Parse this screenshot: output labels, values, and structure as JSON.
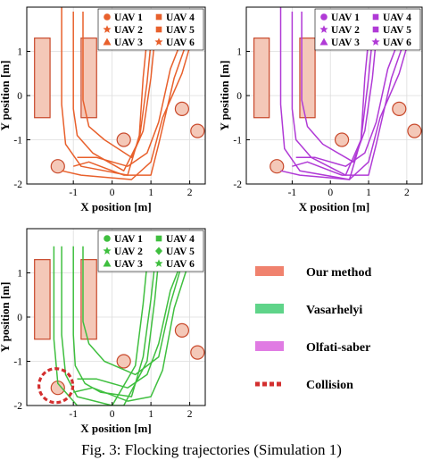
{
  "caption": "Fig. 3: Flocking trajectories (Simulation 1)",
  "chart_data": [
    {
      "type": "line",
      "method": "Our method",
      "xlabel": "X position [m]",
      "ylabel": "Y position [m]",
      "xlim": [
        -2.2,
        2.4
      ],
      "ylim": [
        -2.0,
        2.0
      ],
      "xticks": [
        -1,
        0,
        1,
        2
      ],
      "yticks": [
        -2,
        -1,
        0,
        1
      ],
      "legend": "top-right",
      "color": "#e8602c",
      "series": [
        {
          "name": "UAV 1",
          "marker": "circle",
          "x": [
            -1.0,
            -1.0,
            -1.0,
            -0.9,
            -0.5,
            0.3,
            0.7,
            0.9,
            1.0
          ],
          "y": [
            1.9,
            1.6,
            -0.3,
            -0.9,
            -1.3,
            -1.7,
            -1.0,
            0.3,
            1.2
          ]
        },
        {
          "name": "UAV 2",
          "marker": "star",
          "x": [
            -1.3,
            -1.3,
            -1.3,
            -1.2,
            -0.8,
            0.4,
            0.7,
            0.8,
            0.9
          ],
          "y": [
            2.0,
            1.6,
            -0.2,
            -1.1,
            -1.6,
            -1.8,
            -0.9,
            0.4,
            1.3
          ]
        },
        {
          "name": "UAV 3",
          "marker": "triangle",
          "x": [
            -0.75,
            -0.75,
            -0.75,
            -0.6,
            -0.2,
            0.5,
            0.8,
            1.0,
            1.1
          ],
          "y": [
            1.9,
            1.6,
            -0.1,
            -0.7,
            -1.0,
            -1.4,
            -0.8,
            0.4,
            1.3
          ]
        },
        {
          "name": "UAV 4",
          "marker": "square",
          "x": [
            -1.0,
            -0.6,
            0.3,
            1.0,
            1.2,
            1.6,
            2.0
          ],
          "y": [
            -1.6,
            -1.5,
            -1.8,
            -1.8,
            -1.1,
            0.4,
            1.4
          ]
        },
        {
          "name": "UAV 5",
          "marker": "square",
          "x": [
            -1.3,
            -0.8,
            0.5,
            1.0,
            1.3,
            1.8,
            2.1
          ],
          "y": [
            -1.7,
            -1.8,
            -1.9,
            -1.5,
            -0.5,
            0.5,
            1.4
          ]
        },
        {
          "name": "UAV 6",
          "marker": "star",
          "x": [
            -0.9,
            -0.4,
            0.4,
            0.9,
            1.2,
            1.5,
            1.9
          ],
          "y": [
            -1.4,
            -1.4,
            -1.6,
            -1.3,
            -0.6,
            0.6,
            1.5
          ]
        }
      ]
    },
    {
      "type": "line",
      "method": "Olfati-saber",
      "xlabel": "X position [m]",
      "ylabel": "Y position [m]",
      "xlim": [
        -2.2,
        2.4
      ],
      "ylim": [
        -2.0,
        2.0
      ],
      "xticks": [
        -1,
        0,
        1,
        2
      ],
      "yticks": [
        -2,
        -1,
        0,
        1
      ],
      "legend": "top-right",
      "color": "#b03ad6",
      "series": [
        {
          "name": "UAV 1",
          "marker": "circle",
          "x": [
            -1.0,
            -1.0,
            -1.0,
            -0.9,
            -0.5,
            0.4,
            0.8,
            1.0,
            1.1
          ],
          "y": [
            1.9,
            1.6,
            -0.3,
            -1.0,
            -1.4,
            -1.8,
            -1.0,
            0.4,
            1.3
          ]
        },
        {
          "name": "UAV 2",
          "marker": "star",
          "x": [
            -1.3,
            -1.3,
            -1.3,
            -1.2,
            -0.8,
            0.5,
            0.8,
            0.9,
            1.0
          ],
          "y": [
            2.0,
            1.6,
            -0.2,
            -1.2,
            -1.7,
            -1.9,
            -1.0,
            0.4,
            1.3
          ]
        },
        {
          "name": "UAV 3",
          "marker": "triangle",
          "x": [
            -0.75,
            -0.75,
            -0.75,
            -0.6,
            -0.2,
            0.6,
            0.9,
            1.1,
            1.2
          ],
          "y": [
            1.9,
            1.6,
            -0.1,
            -0.7,
            -1.1,
            -1.5,
            -0.8,
            0.4,
            1.3
          ]
        },
        {
          "name": "UAV 4",
          "marker": "square",
          "x": [
            -1.0,
            -0.6,
            0.3,
            1.0,
            1.2,
            1.6,
            2.0
          ],
          "y": [
            -1.6,
            -1.5,
            -1.8,
            -1.8,
            -1.1,
            0.4,
            1.4
          ]
        },
        {
          "name": "UAV 5",
          "marker": "square",
          "x": [
            -1.3,
            -0.8,
            0.5,
            1.0,
            1.3,
            1.8,
            2.1
          ],
          "y": [
            -1.7,
            -1.8,
            -1.9,
            -1.5,
            -0.5,
            0.5,
            1.4
          ]
        },
        {
          "name": "UAV 6",
          "marker": "star",
          "x": [
            -0.9,
            -0.4,
            0.4,
            0.9,
            1.2,
            1.5,
            1.9
          ],
          "y": [
            -1.4,
            -1.4,
            -1.6,
            -1.3,
            -0.6,
            0.6,
            1.5
          ]
        }
      ]
    },
    {
      "type": "line",
      "method": "Vasarhelyi",
      "xlabel": "X position [m]",
      "ylabel": "Y position [m]",
      "xlim": [
        -2.2,
        2.4
      ],
      "ylim": [
        -2.0,
        2.0
      ],
      "xticks": [
        -1,
        0,
        1,
        2
      ],
      "yticks": [
        -2,
        -1,
        0,
        1
      ],
      "legend": "top-right",
      "color": "#3fbf3f",
      "series": [
        {
          "name": "UAV 1",
          "marker": "circle",
          "x": [
            -1.0,
            -1.0,
            -1.0,
            -0.95,
            -0.7,
            -0.3,
            0.5,
            0.8,
            1.0,
            1.1
          ],
          "y": [
            1.6,
            1.4,
            -0.4,
            -1.1,
            -1.5,
            -1.7,
            -1.8,
            -0.9,
            0.4,
            1.2
          ]
        },
        {
          "name": "UAV 2",
          "marker": "star",
          "x": [
            -1.3,
            -1.3,
            -1.3,
            -1.2,
            -0.9,
            0.0,
            0.6,
            0.8,
            0.9
          ],
          "y": [
            1.6,
            1.4,
            -0.4,
            -1.3,
            -1.8,
            -2.0,
            -1.1,
            0.3,
            1.2
          ]
        },
        {
          "name": "UAV 3",
          "marker": "triangle",
          "x": [
            -1.5,
            -1.5,
            -1.5,
            -1.4,
            -0.9,
            0.3,
            0.9,
            1.1,
            1.2
          ],
          "y": [
            1.6,
            1.4,
            -0.5,
            -1.5,
            -2.0,
            -2.0,
            -1.0,
            0.4,
            1.3
          ]
        },
        {
          "name": "UAV 4",
          "marker": "square",
          "x": [
            -0.75,
            -0.75,
            -0.75,
            -0.6,
            -0.2,
            0.6,
            1.2,
            1.5,
            1.8
          ],
          "y": [
            1.6,
            1.4,
            -0.1,
            -0.6,
            -1.0,
            -1.3,
            -0.9,
            0.3,
            1.2
          ]
        },
        {
          "name": "UAV 5",
          "marker": "diamond",
          "x": [
            -1.0,
            -0.5,
            0.4,
            1.0,
            1.3,
            1.6,
            2.0
          ],
          "y": [
            -1.7,
            -1.6,
            -1.9,
            -1.8,
            -1.2,
            0.2,
            1.3
          ]
        },
        {
          "name": "UAV 6",
          "marker": "star",
          "x": [
            -0.9,
            -0.4,
            0.4,
            0.9,
            1.2,
            1.5,
            1.9
          ],
          "y": [
            -1.4,
            -1.4,
            -1.6,
            -1.3,
            -0.6,
            0.6,
            1.5
          ]
        }
      ],
      "annotations": [
        {
          "type": "collision-circle",
          "x": -1.45,
          "y": -1.55
        }
      ]
    }
  ],
  "obstacles": {
    "rects": [
      [
        -2.0,
        -0.5,
        0.4,
        1.8
      ],
      [
        -0.8,
        -0.5,
        0.4,
        1.8
      ]
    ],
    "circles": [
      [
        -1.4,
        -1.6
      ],
      [
        0.3,
        -1.0
      ],
      [
        1.8,
        -0.3
      ],
      [
        2.2,
        -0.8
      ]
    ],
    "fill": "#f4c8b8",
    "stroke": "#c8482a"
  },
  "method_legend": [
    {
      "label": "Our method",
      "color": "#f0826e",
      "style": "solid"
    },
    {
      "label": "Vasarhelyi",
      "color": "#5fd489",
      "style": "solid"
    },
    {
      "label": "Olfati-saber",
      "color": "#e07be3",
      "style": "solid"
    },
    {
      "label": "Collision",
      "color": "#d32f2f",
      "style": "dashed"
    }
  ]
}
